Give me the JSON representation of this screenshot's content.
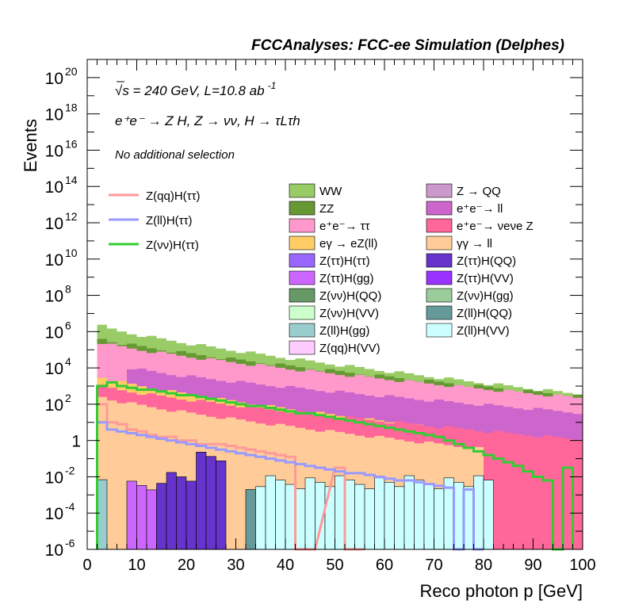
{
  "header": "FCCAnalyses: FCC-ee Simulation (Delphes)",
  "info_lines": {
    "energy": "√s = 240 GeV, L=10.8 ab",
    "energy_sup": "-1",
    "process": "e⁺e⁻ → Z H, Z → νν, H → τLτh",
    "selection": "No additional selection"
  },
  "chart_data": {
    "type": "histogram",
    "xlabel": "Reco photon p [GeV]",
    "ylabel": "Events",
    "xlim": [
      0,
      100
    ],
    "ylim": [
      1e-06,
      1e+21
    ],
    "yscale": "log",
    "bin_width": 2,
    "x_ticks": [
      "0",
      "10",
      "20",
      "30",
      "40",
      "50",
      "60",
      "70",
      "80",
      "90",
      "100"
    ],
    "y_tick_labels": [
      {
        "exp": -6,
        "label": "10",
        "sup": "-6"
      },
      {
        "exp": -4,
        "label": "10",
        "sup": "-4"
      },
      {
        "exp": -2,
        "label": "10",
        "sup": "-2"
      },
      {
        "exp": 0,
        "label": "1",
        "sup": ""
      },
      {
        "exp": 2,
        "label": "10",
        "sup": "2"
      },
      {
        "exp": 4,
        "label": "10",
        "sup": "4"
      },
      {
        "exp": 6,
        "label": "10",
        "sup": "6"
      },
      {
        "exp": 8,
        "label": "10",
        "sup": "8"
      },
      {
        "exp": 10,
        "label": "10",
        "sup": "10"
      },
      {
        "exp": 12,
        "label": "10",
        "sup": "12"
      },
      {
        "exp": 14,
        "label": "10",
        "sup": "14"
      },
      {
        "exp": 16,
        "label": "10",
        "sup": "16"
      },
      {
        "exp": 18,
        "label": "10",
        "sup": "18"
      },
      {
        "exp": 20,
        "label": "10",
        "sup": "20"
      }
    ],
    "stack_envelopes": [
      {
        "name": "WW",
        "color": "#99cc66",
        "from": 2,
        "to": 100,
        "start_exp": 6.3,
        "end_exp": 2.5
      },
      {
        "name": "ZZ",
        "color": "#669933",
        "from": 2,
        "to": 100,
        "start_exp": 5.6,
        "end_exp": 2.4
      },
      {
        "name": "e+e- → ττ",
        "color": "#ff99cc",
        "from": 2,
        "to": 100,
        "start_exp": 5.4,
        "end_exp": 2.3
      },
      {
        "name": "e+e- → ll",
        "color": "#cc66cc",
        "from": 8,
        "to": 100,
        "start_exp": 4.0,
        "end_exp": 1.5
      },
      {
        "name": "eγ → eZ(ll)",
        "color": "#ffcc66",
        "from": 2,
        "to": 100,
        "start_exp": 3.5,
        "end_exp": -0.3
      },
      {
        "name": "e+e- → νeνe Z",
        "color": "#ff6699",
        "from": 2,
        "to": 100,
        "start_exp": 3.0,
        "end_exp": 0.0
      },
      {
        "name": "γγ → ll",
        "color": "#ffcc99",
        "from": 2,
        "to": 80,
        "start_exp": 2.4,
        "end_exp": -0.5
      }
    ],
    "low_bins": [
      {
        "name": "Z(ll)H(gg)",
        "color": "#99cccc",
        "x": [
          2,
          4
        ],
        "top_exp": -2.4
      },
      {
        "name": "Z(ττ)H(gg)",
        "color": "#cc66ff",
        "x": [
          8,
          14
        ],
        "top_exp": -2.6
      },
      {
        "name": "Z(ττ)H(QQ)",
        "color": "#6633cc",
        "x": [
          14,
          22
        ],
        "top_exp": -2.0
      },
      {
        "name": "Z(ττ)H(QQ)",
        "color": "#6633cc",
        "x": [
          22,
          28
        ],
        "top_exp": -1.0
      },
      {
        "name": "Z(ll)H(QQ)",
        "color": "#669999",
        "x": [
          32,
          34
        ],
        "top_exp": -2.7
      },
      {
        "name": "Z(ll)H(VV)",
        "color": "#ccffff",
        "x": [
          34,
          82
        ],
        "top_exp": -2.3
      }
    ],
    "signal_series": [
      {
        "name": "Z(qq)H(ττ)",
        "color": "#ff9999",
        "x": [
          2,
          4,
          6,
          8,
          10,
          12,
          14,
          16,
          18,
          20,
          22,
          24,
          26,
          28,
          30,
          32,
          34,
          36,
          38,
          40,
          42,
          44,
          50,
          52,
          54
        ],
        "exp": [
          2.0,
          1.0,
          0.9,
          0.6,
          0.5,
          0.3,
          0.2,
          0.2,
          0.0,
          0.0,
          -0.2,
          -0.2,
          -0.2,
          -0.3,
          -0.4,
          -0.5,
          -0.6,
          -0.7,
          -0.8,
          -0.9,
          -6.0,
          -6.0,
          -1.5,
          -6.0,
          -6.0
        ]
      },
      {
        "name": "Z(ll)H(ττ)",
        "color": "#9999ff",
        "x": [
          2,
          4,
          6,
          8,
          10,
          12,
          14,
          16,
          18,
          20,
          22,
          24,
          26,
          28,
          30,
          32,
          34,
          36,
          38,
          40,
          42,
          44,
          46,
          48,
          50,
          52,
          54,
          56,
          58,
          60,
          62,
          64,
          66,
          68,
          70,
          72,
          74,
          76,
          78
        ],
        "exp": [
          1.0,
          0.6,
          0.5,
          0.4,
          0.3,
          0.2,
          0.1,
          0.0,
          -0.1,
          -0.2,
          -0.3,
          -0.4,
          -0.5,
          -0.6,
          -0.7,
          -0.8,
          -0.9,
          -1.0,
          -1.1,
          -1.2,
          -1.3,
          -1.4,
          -1.5,
          -1.6,
          -1.7,
          -1.8,
          -1.8,
          -1.9,
          -2.0,
          -2.1,
          -2.2,
          -2.2,
          -2.3,
          -2.4,
          -2.5,
          -2.6,
          -6.0,
          -2.7,
          -6.0
        ]
      },
      {
        "name": "Z(νν)H(ττ)",
        "color": "#33cc33",
        "x": [
          2,
          4,
          6,
          8,
          10,
          12,
          14,
          16,
          18,
          20,
          22,
          24,
          26,
          28,
          30,
          32,
          34,
          36,
          38,
          40,
          42,
          44,
          46,
          48,
          50,
          52,
          54,
          56,
          58,
          60,
          62,
          64,
          66,
          68,
          70,
          72,
          74,
          76,
          78,
          80,
          82,
          84,
          86,
          88,
          90,
          92,
          94,
          96
        ],
        "exp": [
          3.0,
          3.2,
          3.0,
          2.9,
          2.8,
          2.8,
          2.7,
          2.6,
          2.5,
          2.5,
          2.4,
          2.3,
          2.2,
          2.1,
          2.0,
          1.9,
          1.9,
          1.8,
          1.7,
          1.6,
          1.5,
          1.5,
          1.4,
          1.3,
          1.2,
          1.1,
          1.0,
          0.9,
          0.8,
          0.7,
          0.6,
          0.5,
          0.4,
          0.3,
          0.2,
          0.0,
          -0.2,
          -0.4,
          -0.6,
          -0.8,
          -1.0,
          -1.2,
          -1.4,
          -1.7,
          -2.0,
          -2.2,
          -6.0,
          -1.5
        ]
      }
    ],
    "legend_signals": [
      {
        "label": "Z(qq)H(ττ)",
        "color": "#ff9999"
      },
      {
        "label": "Z(ll)H(ττ)",
        "color": "#9999ff"
      },
      {
        "label": "Z(νν)H(ττ)",
        "color": "#33cc33"
      }
    ],
    "legend_backgrounds": [
      {
        "label": "WW",
        "color": "#99cc66"
      },
      {
        "label": "Z → QQ",
        "color": "#cc99cc"
      },
      {
        "label": "ZZ",
        "color": "#669933"
      },
      {
        "label": "e⁺e⁻→ ll",
        "color": "#cc66cc"
      },
      {
        "label": "e⁺e⁻→ ττ",
        "color": "#ff99cc"
      },
      {
        "label": "e⁺e⁻→ νeνe Z",
        "color": "#ff6699"
      },
      {
        "label": "eγ → eZ(ll)",
        "color": "#ffcc66"
      },
      {
        "label": "γγ → ll",
        "color": "#ffcc99"
      },
      {
        "label": "Z(ττ)H(ττ)",
        "color": "#9966ff"
      },
      {
        "label": "Z(ττ)H(QQ)",
        "color": "#6633cc"
      },
      {
        "label": "Z(ττ)H(gg)",
        "color": "#cc66ff"
      },
      {
        "label": "Z(ττ)H(VV)",
        "color": "#9933ff"
      },
      {
        "label": "Z(νν)H(QQ)",
        "color": "#669966"
      },
      {
        "label": "Z(νν)H(gg)",
        "color": "#99cc99"
      },
      {
        "label": "Z(νν)H(VV)",
        "color": "#ccffcc"
      },
      {
        "label": "Z(ll)H(QQ)",
        "color": "#669999"
      },
      {
        "label": "Z(ll)H(gg)",
        "color": "#99cccc"
      },
      {
        "label": "Z(ll)H(VV)",
        "color": "#ccffff"
      },
      {
        "label": "Z(qq)H(VV)",
        "color": "#ffccff"
      }
    ]
  }
}
